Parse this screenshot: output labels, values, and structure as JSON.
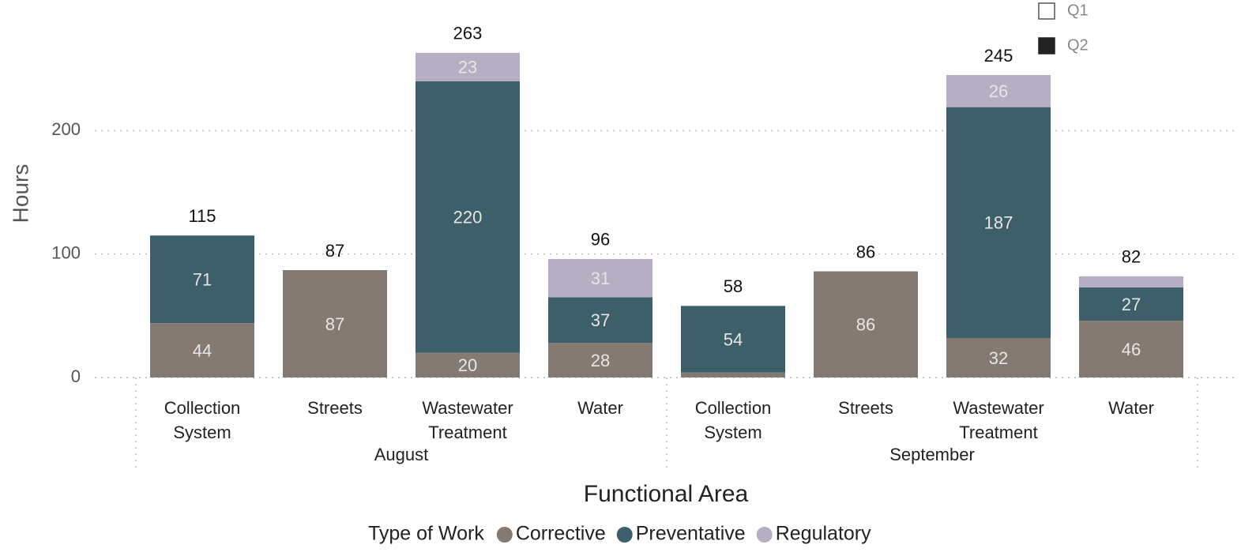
{
  "chart_data": {
    "type": "stacked_bar",
    "groups": [
      {
        "name": "August",
        "size": 4
      },
      {
        "name": "September",
        "size": 4
      }
    ],
    "categories": [
      "Collection System",
      "Streets",
      "Wastewater Treatment",
      "Water",
      "Collection System",
      "Streets",
      "Wastewater Treatment",
      "Water"
    ],
    "series": [
      {
        "name": "Corrective",
        "color": "#857a72",
        "values": [
          44,
          87,
          20,
          28,
          4,
          86,
          32,
          46
        ]
      },
      {
        "name": "Preventative",
        "color": "#3d5f69",
        "values": [
          71,
          null,
          220,
          37,
          54,
          null,
          187,
          27
        ]
      },
      {
        "name": "Regulatory",
        "color": "#b6aec3",
        "values": [
          null,
          null,
          23,
          31,
          null,
          null,
          26,
          9
        ]
      }
    ],
    "totals": [
      115,
      87,
      263,
      96,
      58,
      86,
      245,
      82
    ],
    "ylim": [
      0,
      300
    ],
    "yticks": [
      0,
      100,
      200
    ],
    "grid": true,
    "y_label": "Hours",
    "x_label": "Functional Area",
    "legend_title": "Type of Work",
    "legend_position": "bottom",
    "slicer": [
      "Q1",
      "Q2"
    ]
  }
}
